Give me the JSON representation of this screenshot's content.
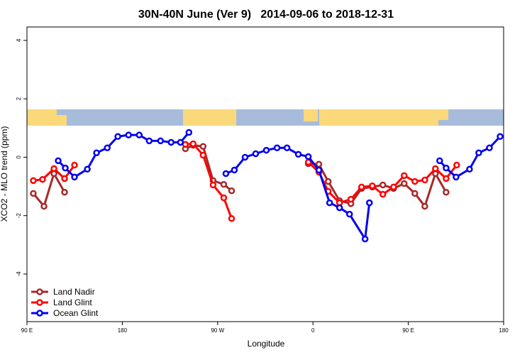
{
  "chart_data": {
    "type": "line",
    "title": "30N-40N June (Ver 9)   2014-09-06 to 2018-12-31",
    "x_label": "Longitude",
    "y_label": "XCO2 - MLO trend (ppm)",
    "xlim": [
      90,
      540
    ],
    "xticks": [
      {
        "value": 90,
        "label": "90 E"
      },
      180,
      {
        "value": 270,
        "label": "90 W"
      },
      {
        "value": 360,
        "label": "0"
      },
      {
        "value": 450,
        "label": "90 E"
      },
      {
        "value": 540,
        "label": "180"
      }
    ],
    "ylim": [
      -5.63,
      4.46
    ],
    "yticks": [
      -4,
      -2,
      0,
      2,
      4
    ],
    "legend": "bottom-left",
    "series": [
      {
        "name": "Land Nadir",
        "color": "#a52a2a",
        "x": [
          96.0,
          106.1,
          115.5,
          125.5,
          null,
          239.6,
          246.9,
          256.3,
          265.7,
          275.8,
          283.2,
          null,
          355.6,
          365.6,
          374.4,
          385.1,
          395.8,
          405.9,
          416.0,
          426.0,
          436.1,
          446.1,
          456.2,
          465.6,
          475.6,
          485.7
        ],
        "values": [
          -1.24,
          -1.68,
          -0.56,
          -1.2,
          null,
          0.29,
          0.41,
          0.37,
          -0.8,
          -0.93,
          -1.15,
          null,
          -0.22,
          -0.24,
          -0.83,
          -1.49,
          -1.59,
          -1.07,
          -1.02,
          -0.95,
          -1.07,
          -0.9,
          -1.24,
          -1.68,
          -0.56,
          -1.2
        ]
      },
      {
        "name": "Land Glint",
        "color": "#ff0000",
        "x": [
          96.0,
          104.7,
          115.5,
          125.5,
          134.9,
          null,
          239.6,
          246.9,
          256.3,
          265.7,
          275.8,
          283.2,
          null,
          355.6,
          365.6,
          374.4,
          385.1,
          395.8,
          405.9,
          416.0,
          426.0,
          436.1,
          446.1,
          456.2,
          465.6,
          475.6,
          485.7,
          495.7
        ],
        "values": [
          -0.8,
          -0.76,
          -0.39,
          -0.73,
          -0.27,
          null,
          0.44,
          0.46,
          0.07,
          -0.95,
          -1.39,
          -2.1,
          null,
          -0.17,
          -0.51,
          -1.17,
          -1.56,
          -1.44,
          -1.02,
          -0.98,
          -1.27,
          -1.02,
          -0.63,
          -0.83,
          -0.78,
          -0.39,
          -0.73,
          -0.27
        ]
      },
      {
        "name": "Ocean Glint",
        "color": "#0000ee",
        "x": [
          119.5,
          126.2,
          134.9,
          147.0,
          155.7,
          165.8,
          175.8,
          185.9,
          196.0,
          205.4,
          216.1,
          226.1,
          234.9,
          242.9,
          null,
          277.8,
          285.8,
          295.9,
          305.9,
          316.0,
          326.1,
          335.5,
          346.2,
          355.6,
          365.6,
          375.7,
          385.1,
          394.5,
          409.2,
          413.3,
          null,
          479.6,
          485.7,
          495.1,
          507.8,
          516.5,
          526.6,
          536.7
        ],
        "values": [
          -0.12,
          -0.37,
          -0.68,
          -0.41,
          0.15,
          0.32,
          0.71,
          0.76,
          0.76,
          0.56,
          0.56,
          0.51,
          0.51,
          0.85,
          null,
          -0.56,
          -0.44,
          0,
          0.12,
          0.24,
          0.32,
          0.32,
          0.1,
          0.02,
          -0.44,
          -1.56,
          -1.73,
          -1.95,
          -2.8,
          -1.56,
          null,
          -0.12,
          -0.37,
          -0.68,
          -0.41,
          0.15,
          0.32,
          0.71
        ]
      }
    ]
  }
}
